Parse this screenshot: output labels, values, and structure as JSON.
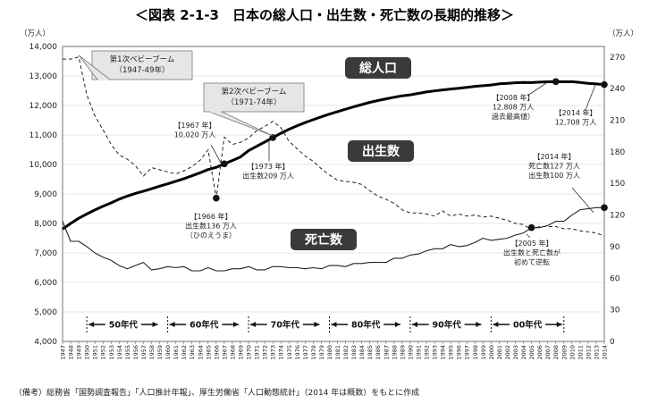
{
  "title": "＜図表 2-1-3　日本の総人口・出生数・死亡数の長期的推移＞",
  "source_note": "（備考）総務省「国勢調査報告」「人口推計年報」、厚生労働省「人口動態統計」（2014 年は概数）をもとに作成",
  "colors": {
    "total": "#000000",
    "births": "#222222",
    "deaths": "#222222",
    "label_box": "#3a3a3a"
  },
  "chart_data": {
    "type": "line",
    "x": [
      1947,
      1948,
      1949,
      1950,
      1951,
      1952,
      1953,
      1954,
      1955,
      1956,
      1957,
      1958,
      1959,
      1960,
      1961,
      1962,
      1963,
      1964,
      1965,
      1966,
      1967,
      1968,
      1969,
      1970,
      1971,
      1972,
      1973,
      1974,
      1975,
      1976,
      1977,
      1978,
      1979,
      1980,
      1981,
      1982,
      1983,
      1984,
      1985,
      1986,
      1987,
      1988,
      1989,
      1990,
      1991,
      1992,
      1993,
      1994,
      1995,
      1996,
      1997,
      1998,
      1999,
      2000,
      2001,
      2002,
      2003,
      2004,
      2005,
      2006,
      2007,
      2008,
      2009,
      2010,
      2011,
      2012,
      2013,
      2014
    ],
    "xlim": [
      1947,
      2014
    ],
    "y_left": {
      "unit": "（万人）",
      "ylim": [
        4000,
        14000
      ],
      "ticks": [
        "4,000",
        "5,000",
        "6,000",
        "7,000",
        "8,000",
        "9,000",
        "10,000",
        "11,000",
        "12,000",
        "13,000",
        "14,000"
      ]
    },
    "y_right": {
      "unit": "（万人）",
      "ylim": [
        0,
        280
      ],
      "ticks": [
        "0",
        "30",
        "60",
        "90",
        "120",
        "150",
        "180",
        "210",
        "240",
        "270"
      ]
    },
    "series": [
      {
        "name": "総人口",
        "axis": "left",
        "style": "solid-thick",
        "values": [
          7810,
          8000,
          8177,
          8320,
          8457,
          8581,
          8698,
          8824,
          8928,
          9017,
          9093,
          9177,
          9264,
          9342,
          9429,
          9518,
          9616,
          9718,
          9828,
          9904,
          10020,
          10133,
          10254,
          10467,
          10614,
          10760,
          10910,
          11057,
          11194,
          11309,
          11417,
          11519,
          11616,
          11706,
          11790,
          11873,
          11954,
          12031,
          12105,
          12166,
          12224,
          12278,
          12326,
          12361,
          12410,
          12457,
          12494,
          12527,
          12557,
          12586,
          12616,
          12649,
          12669,
          12693,
          12732,
          12749,
          12769,
          12779,
          12777,
          12790,
          12803,
          12808,
          12803,
          12806,
          12780,
          12752,
          12730,
          12708
        ]
      },
      {
        "name": "出生数",
        "axis": "right",
        "style": "dashed",
        "values": [
          268,
          268,
          270,
          234,
          214,
          201,
          187,
          177,
          173,
          167,
          157,
          165,
          163,
          161,
          159,
          162,
          166,
          172,
          182,
          136,
          194,
          187,
          189,
          193,
          200,
          204,
          209,
          203,
          190,
          183,
          176,
          171,
          164,
          158,
          153,
          152,
          151,
          149,
          143,
          138,
          135,
          131,
          125,
          122,
          122,
          121,
          119,
          124,
          119,
          121,
          119,
          120,
          118,
          119,
          117,
          115,
          112,
          111,
          106,
          109,
          109,
          109,
          107,
          107,
          105,
          104,
          103,
          100
        ]
      },
      {
        "name": "死亡数",
        "axis": "right",
        "style": "solid-thin",
        "values": [
          114,
          95,
          95,
          90,
          84,
          80,
          77,
          72,
          69,
          72,
          75,
          68,
          69,
          71,
          70,
          71,
          67,
          67,
          70,
          67,
          67,
          69,
          69,
          71,
          68,
          68,
          71,
          71,
          70,
          70,
          69,
          70,
          69,
          72,
          72,
          71,
          74,
          74,
          75,
          75,
          75,
          79,
          79,
          82,
          83,
          86,
          88,
          88,
          92,
          90,
          91,
          94,
          98,
          96,
          97,
          98,
          101,
          103,
          108,
          108,
          110,
          114,
          114,
          120,
          125,
          126,
          127,
          127
        ]
      }
    ],
    "decades": [
      {
        "label": "50年代",
        "from": 1950,
        "to": 1959
      },
      {
        "label": "60年代",
        "from": 1960,
        "to": 1969
      },
      {
        "label": "70年代",
        "from": 1970,
        "to": 1979
      },
      {
        "label": "80年代",
        "from": 1980,
        "to": 1989
      },
      {
        "label": "90年代",
        "from": 1990,
        "to": 1999
      },
      {
        "label": "00年代",
        "from": 2000,
        "to": 2009
      }
    ],
    "callouts": [
      {
        "id": "boom1",
        "lines": [
          "第1次ベビーブーム",
          "（1947-49年）"
        ],
        "target_year": 1949,
        "target_series": 1
      },
      {
        "id": "boom2",
        "lines": [
          "第2次ベビーブーム",
          "（1971-74年）"
        ],
        "target_year": 1973,
        "target_series": 0
      }
    ],
    "annotations": [
      {
        "id": "p1967",
        "lines": [
          "【1967 年】",
          "10,020 万人"
        ],
        "year": 1967,
        "series": 0,
        "marker": true
      },
      {
        "id": "p1966",
        "lines": [
          "【1966 年】",
          "出生数136 万人",
          "（ひのえうま）"
        ],
        "year": 1966,
        "series": 1,
        "marker": true
      },
      {
        "id": "p1973",
        "lines": [
          "【1973 年】",
          "出生数209 万人"
        ],
        "year": 1973,
        "series": 1,
        "marker": false
      },
      {
        "id": "p2008",
        "lines": [
          "【2008 年】",
          "12,808 万人",
          "過去最高値）"
        ],
        "year": 2008,
        "series": 0,
        "marker": true
      },
      {
        "id": "p2014a",
        "lines": [
          "【2014 年】",
          "12,708 万人"
        ],
        "year": 2014,
        "series": 0,
        "marker": true
      },
      {
        "id": "p2014b",
        "lines": [
          "【2014 年】",
          "死亡数127 万人",
          "出生数100 万人"
        ],
        "year": 2014,
        "series": 2,
        "marker": true
      },
      {
        "id": "p2005",
        "lines": [
          "【2005 年】",
          "出生数と死亡数が",
          "初めて逆転"
        ],
        "year": 2005,
        "series": 2,
        "marker": true
      }
    ],
    "legend": "inline-labels",
    "grid": true
  }
}
